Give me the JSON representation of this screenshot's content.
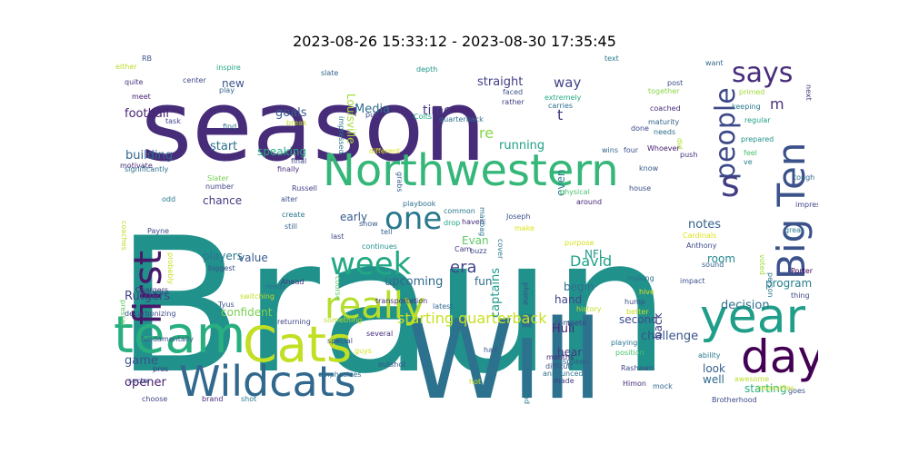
{
  "title": "2023-08-26 15:33:12 - 2023-08-30 17:35:45",
  "words": [
    {
      "text": "Braun",
      "color": "#21918c"
    },
    {
      "text": "season",
      "color": "#472c7a"
    },
    {
      "text": "Will",
      "color": "#2c728e"
    },
    {
      "text": "Northwestern",
      "color": "#35b779"
    },
    {
      "text": "Cats",
      "color": "#c2df23"
    },
    {
      "text": "team",
      "color": "#29af7f"
    },
    {
      "text": "Wildcats",
      "color": "#31688e"
    },
    {
      "text": "year",
      "color": "#1f9e89"
    },
    {
      "text": "day",
      "color": "#440154"
    },
    {
      "text": "Big Ten",
      "color": "#3b528b"
    },
    {
      "text": "first",
      "color": "#48186a"
    },
    {
      "text": "really",
      "color": "#b5de2b"
    },
    {
      "text": "week",
      "color": "#22a884"
    },
    {
      "text": "one",
      "color": "#2a788e"
    },
    {
      "text": "says",
      "color": "#472d7b"
    },
    {
      "text": "people",
      "color": "#3e4989"
    },
    {
      "text": "s",
      "color": "#433e85"
    },
    {
      "text": "starting quarterback",
      "color": "#c8e020"
    },
    {
      "text": "era",
      "color": "#3f4788"
    },
    {
      "text": "David",
      "color": "#20a386"
    },
    {
      "text": "challenge",
      "color": "#39558c"
    },
    {
      "text": "decision",
      "color": "#2d708e"
    },
    {
      "text": "Media",
      "color": "#2e6e8e"
    },
    {
      "text": "straight",
      "color": "#424086"
    },
    {
      "text": "way",
      "color": "#414487"
    },
    {
      "text": "time",
      "color": "#453781"
    },
    {
      "text": "goals",
      "color": "#365c8d"
    },
    {
      "text": "re",
      "color": "#86d549"
    },
    {
      "text": "t",
      "color": "#443a83"
    },
    {
      "text": "running",
      "color": "#1fa188"
    },
    {
      "text": "football",
      "color": "#482475"
    },
    {
      "text": "new",
      "color": "#3a548c"
    },
    {
      "text": "building",
      "color": "#31678e"
    },
    {
      "text": "start",
      "color": "#2c718e"
    },
    {
      "text": "speaking",
      "color": "#25ac82"
    },
    {
      "text": "chance",
      "color": "#443983"
    },
    {
      "text": "players",
      "color": "#2a778e"
    },
    {
      "text": "value",
      "color": "#38598c"
    },
    {
      "text": "Rutgers",
      "color": "#404688"
    },
    {
      "text": "confident",
      "color": "#7ad151"
    },
    {
      "text": "notes",
      "color": "#34608d"
    },
    {
      "text": "Louisville",
      "color": "#a5db36"
    },
    {
      "text": "upcoming",
      "color": "#30698e"
    },
    {
      "text": "captains",
      "color": "#1e9b8a"
    },
    {
      "text": "even",
      "color": "#26818e"
    },
    {
      "text": "game",
      "color": "#3b518b"
    },
    {
      "text": "opener",
      "color": "#481a6c"
    },
    {
      "text": "Hull",
      "color": "#482677"
    },
    {
      "text": "hear",
      "color": "#453882"
    },
    {
      "text": "back",
      "color": "#433d84"
    },
    {
      "text": "second",
      "color": "#3e4a89"
    },
    {
      "text": "look",
      "color": "#355e8d"
    },
    {
      "text": "well",
      "color": "#30698e"
    },
    {
      "text": "room",
      "color": "#23898e"
    },
    {
      "text": "m",
      "color": "#472f7d"
    },
    {
      "text": "program",
      "color": "#287d8e"
    },
    {
      "text": "starting",
      "color": "#2ab07f"
    },
    {
      "text": "begin",
      "color": "#2e6f8e"
    },
    {
      "text": "NFL",
      "color": "#1f9a8a"
    },
    {
      "text": "Evan",
      "color": "#5ec962"
    },
    {
      "text": "fun",
      "color": "#2f6c8e"
    },
    {
      "text": "hand",
      "color": "#404588"
    },
    {
      "text": "early",
      "color": "#38588c"
    },
    {
      "text": "RB",
      "color": "#3b528b"
    },
    {
      "text": "either",
      "color": "#b8de29"
    },
    {
      "text": "inspire",
      "color": "#22a785"
    },
    {
      "text": "quite",
      "color": "#46327e"
    },
    {
      "text": "center",
      "color": "#3e4989"
    },
    {
      "text": "play",
      "color": "#33638d"
    },
    {
      "text": "meet",
      "color": "#481f70"
    },
    {
      "text": "task",
      "color": "#404688"
    },
    {
      "text": "find",
      "color": "#2c738e"
    },
    {
      "text": "slate",
      "color": "#35608d"
    },
    {
      "text": "depth",
      "color": "#1f968b"
    },
    {
      "text": "text",
      "color": "#2a788e"
    },
    {
      "text": "want",
      "color": "#31688e"
    },
    {
      "text": "post",
      "color": "#3d4e8a"
    },
    {
      "text": "together",
      "color": "#89d548"
    },
    {
      "text": "primed",
      "color": "#a0da39"
    },
    {
      "text": "keeping",
      "color": "#2a788e"
    },
    {
      "text": "next",
      "color": "#453781"
    },
    {
      "text": "coached",
      "color": "#472a7a"
    },
    {
      "text": "maturity",
      "color": "#33638d"
    },
    {
      "text": "needs",
      "color": "#2d708e"
    },
    {
      "text": "regular",
      "color": "#1f9e89"
    },
    {
      "text": "prepared",
      "color": "#21918c"
    },
    {
      "text": "feel",
      "color": "#48c16e"
    },
    {
      "text": "ve",
      "color": "#277f8e"
    },
    {
      "text": "did",
      "color": "#b2dd2d"
    },
    {
      "text": "done",
      "color": "#3f4889"
    },
    {
      "text": "wins",
      "color": "#31678e"
    },
    {
      "text": "four",
      "color": "#3b528b"
    },
    {
      "text": "Whoever",
      "color": "#482173"
    },
    {
      "text": "push",
      "color": "#46307e"
    },
    {
      "text": "tough",
      "color": "#30698e"
    },
    {
      "text": "impress",
      "color": "#414487"
    },
    {
      "text": "great",
      "color": "#2a788e"
    },
    {
      "text": "know",
      "color": "#38598c"
    },
    {
      "text": "house",
      "color": "#3e4c8a"
    },
    {
      "text": "much",
      "color": "#481c6e"
    },
    {
      "text": "rather",
      "color": "#424186"
    },
    {
      "text": "faced",
      "color": "#3b528b"
    },
    {
      "text": "extremely",
      "color": "#25ac82"
    },
    {
      "text": "carries",
      "color": "#2c718e"
    },
    {
      "text": "quarterback",
      "color": "#2e6e8e"
    },
    {
      "text": "Colts",
      "color": "#21a685"
    },
    {
      "text": "pull",
      "color": "#3e4a89"
    },
    {
      "text": "impressed",
      "color": "#2a778e"
    },
    {
      "text": "break",
      "color": "#c0df25"
    },
    {
      "text": "different",
      "color": "#dde318"
    },
    {
      "text": "final",
      "color": "#3f4788"
    },
    {
      "text": "finally",
      "color": "#472e7c"
    },
    {
      "text": "grabs",
      "color": "#365d8d"
    },
    {
      "text": "Slater",
      "color": "#75d054"
    },
    {
      "text": "number",
      "color": "#404588"
    },
    {
      "text": "Russell",
      "color": "#433e85"
    },
    {
      "text": "alter",
      "color": "#3b518b"
    },
    {
      "text": "create",
      "color": "#2a778e"
    },
    {
      "text": "still",
      "color": "#32658e"
    },
    {
      "text": "last",
      "color": "#3f4788"
    },
    {
      "text": "ready",
      "color": "#2c718e"
    },
    {
      "text": "Ahead",
      "color": "#453781"
    },
    {
      "text": "switching",
      "color": "#c0df25"
    },
    {
      "text": "returning",
      "color": "#3e4989"
    },
    {
      "text": "something",
      "color": "#b8de29"
    },
    {
      "text": "Tyus",
      "color": "#3b528b"
    },
    {
      "text": "course",
      "color": "#5ec962"
    },
    {
      "text": "show",
      "color": "#38598c"
    },
    {
      "text": "tell",
      "color": "#355f8d"
    },
    {
      "text": "common",
      "color": "#2a788e"
    },
    {
      "text": "drop",
      "color": "#22a785"
    },
    {
      "text": "playbook",
      "color": "#2d708e"
    },
    {
      "text": "haven",
      "color": "#472c7a"
    },
    {
      "text": "buzz",
      "color": "#3e4a89"
    },
    {
      "text": "Cam",
      "color": "#443a83"
    },
    {
      "text": "continues",
      "color": "#21908d"
    },
    {
      "text": "transportation",
      "color": "#46337f"
    },
    {
      "text": "latest",
      "color": "#31688e"
    },
    {
      "text": "Joseph",
      "color": "#3b528b"
    },
    {
      "text": "make",
      "color": "#dde318"
    },
    {
      "text": "mailbag",
      "color": "#2c738e"
    },
    {
      "text": "cover",
      "color": "#2a788e"
    },
    {
      "text": "phone",
      "color": "#3e4a89"
    },
    {
      "text": "physical",
      "color": "#48c16e"
    },
    {
      "text": "around",
      "color": "#482475"
    },
    {
      "text": "purpose",
      "color": "#d2e21b"
    },
    {
      "text": "history",
      "color": "#c2df23"
    },
    {
      "text": "hive",
      "color": "#d8e219"
    },
    {
      "text": "hump",
      "color": "#3e4989"
    },
    {
      "text": "making",
      "color": "#2c738e"
    },
    {
      "text": "impact",
      "color": "#3b528b"
    },
    {
      "text": "better",
      "color": "#c8e020"
    },
    {
      "text": "Cardinals",
      "color": "#dde318"
    },
    {
      "text": "Anthony",
      "color": "#3e4c8a"
    },
    {
      "text": "sound",
      "color": "#33638d"
    },
    {
      "text": "person",
      "color": "#2a778e"
    },
    {
      "text": "voted",
      "color": "#a0da39"
    },
    {
      "text": "Porter",
      "color": "#440154"
    },
    {
      "text": "thing",
      "color": "#3f4788"
    },
    {
      "text": "facts",
      "color": "#2d708e"
    },
    {
      "text": "compete",
      "color": "#3e4a89"
    },
    {
      "text": "playing",
      "color": "#2a788e"
    },
    {
      "text": "position",
      "color": "#48c16e"
    },
    {
      "text": "months",
      "color": "#482173"
    },
    {
      "text": "difficult",
      "color": "#3b528b"
    },
    {
      "text": "announced",
      "color": "#2c718e"
    },
    {
      "text": "spoken",
      "color": "#38598c"
    },
    {
      "text": "made",
      "color": "#443983"
    },
    {
      "text": "Rashawn",
      "color": "#3e4989"
    },
    {
      "text": "Himon",
      "color": "#472c7a"
    },
    {
      "text": "mock",
      "color": "#32658e"
    },
    {
      "text": "ability",
      "color": "#2a788e"
    },
    {
      "text": "awesome",
      "color": "#b8de29"
    },
    {
      "text": "Brotherhood",
      "color": "#3e4a89"
    },
    {
      "text": "goes",
      "color": "#3b528b"
    },
    {
      "text": "intensifies",
      "color": "#c2df23"
    },
    {
      "text": "special",
      "color": "#3e4989"
    },
    {
      "text": "guys",
      "color": "#d2e21b"
    },
    {
      "text": "several",
      "color": "#472e7c"
    },
    {
      "text": "outshot",
      "color": "#3b528b"
    },
    {
      "text": "emphasizes",
      "color": "#2c718e"
    },
    {
      "text": "half",
      "color": "#38598c"
    },
    {
      "text": "hot",
      "color": "#c8e020"
    },
    {
      "text": "lead",
      "color": "#2a788e"
    },
    {
      "text": "fundamentally",
      "color": "#3b528b"
    },
    {
      "text": "pros",
      "color": "#453781"
    },
    {
      "text": "sector",
      "color": "#3e4989"
    },
    {
      "text": "choose",
      "color": "#404588"
    },
    {
      "text": "brand",
      "color": "#472c7a"
    },
    {
      "text": "shot",
      "color": "#2a788e"
    },
    {
      "text": "decarbonizing",
      "color": "#3e4989"
    },
    {
      "text": "Chargers",
      "color": "#46307e"
    },
    {
      "text": "biggest",
      "color": "#3b528b"
    },
    {
      "text": "presser",
      "color": "#5ec962"
    },
    {
      "text": "Payne",
      "color": "#3e4a89"
    },
    {
      "text": "coaches",
      "color": "#b8de29"
    },
    {
      "text": "probably",
      "color": "#c8e020"
    },
    {
      "text": "odd",
      "color": "#2a788e"
    },
    {
      "text": "motivate",
      "color": "#472c7a"
    },
    {
      "text": "significantly",
      "color": "#2c718e"
    }
  ]
}
